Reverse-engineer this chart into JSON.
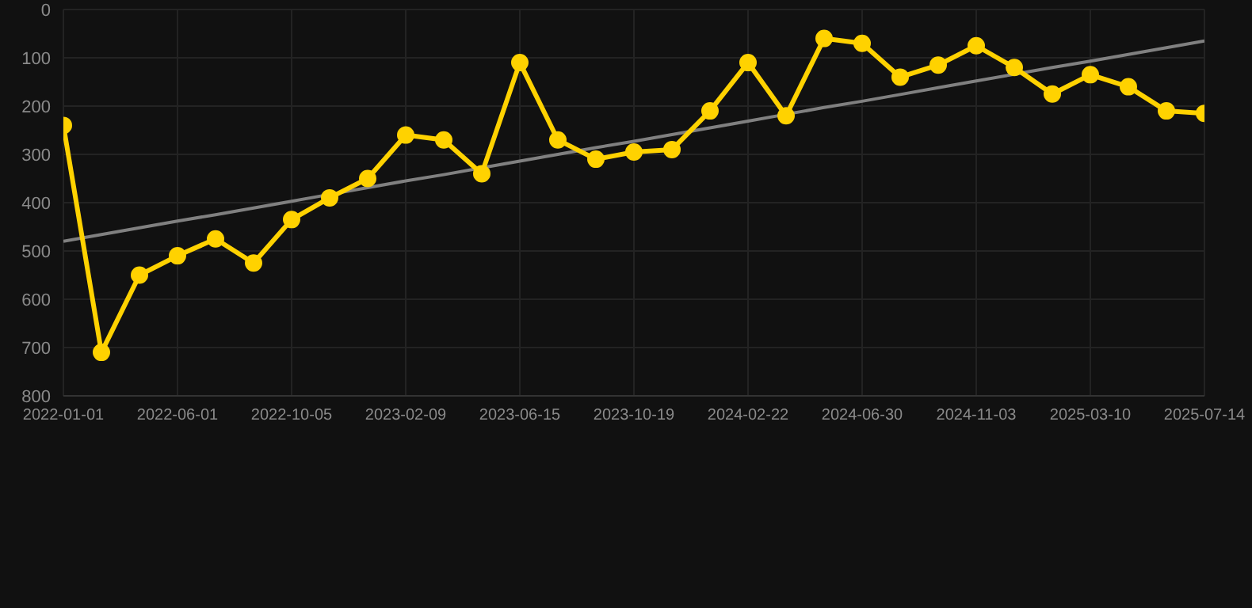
{
  "chart_data": {
    "type": "line",
    "categories": [
      "2022-01-01",
      null,
      null,
      "2022-06-01",
      null,
      null,
      "2022-10-05",
      null,
      null,
      "2023-02-09",
      null,
      null,
      "2023-06-15",
      null,
      null,
      "2023-10-19",
      null,
      null,
      "2024-02-22",
      null,
      null,
      "2024-06-30",
      null,
      null,
      "2024-11-03",
      null,
      null,
      "2025-03-10",
      null,
      null,
      "2025-07-14"
    ],
    "series": [
      {
        "color": "#ffd200",
        "values": [
          240,
          710,
          550,
          510,
          475,
          525,
          435,
          390,
          350,
          260,
          270,
          340,
          110,
          270,
          310,
          295,
          290,
          210,
          110,
          220,
          60,
          70,
          140,
          115,
          75,
          120,
          175,
          135,
          160,
          210,
          215
        ]
      },
      {
        "type": "line",
        "color": "#808080",
        "marker": "none",
        "values": [
          480,
          466,
          452,
          438,
          425,
          411,
          397,
          383,
          369,
          355,
          342,
          328,
          314,
          300,
          286,
          273,
          259,
          245,
          231,
          217,
          203,
          190,
          176,
          162,
          148,
          134,
          120,
          107,
          93,
          79,
          65
        ]
      }
    ],
    "ylim": [
      800,
      0
    ],
    "yticks": [
      0,
      100,
      200,
      300,
      400,
      500,
      600,
      700,
      800
    ],
    "grid": true,
    "marker": "circle"
  }
}
